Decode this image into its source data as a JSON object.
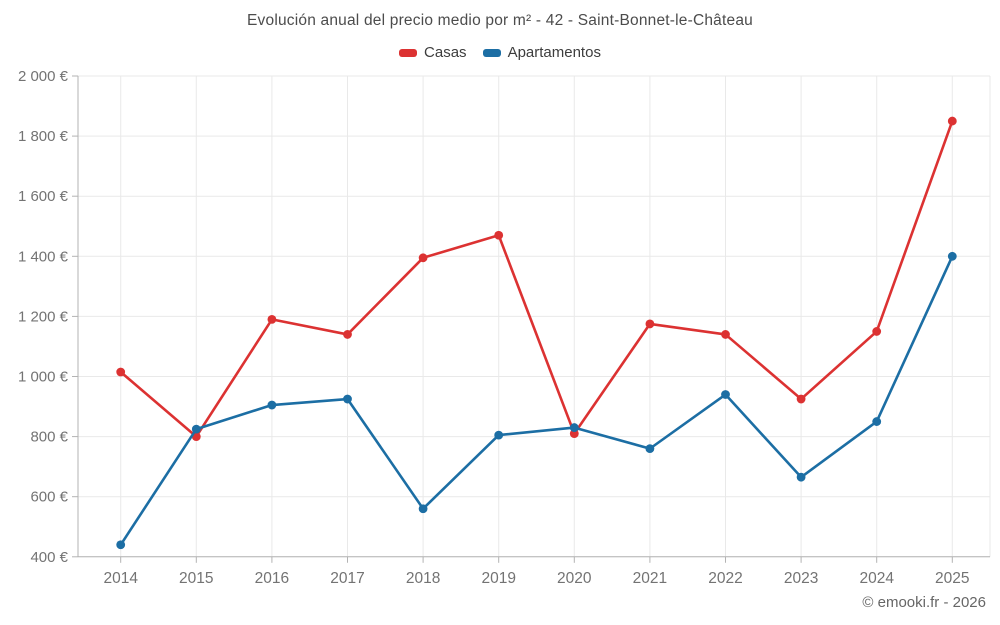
{
  "title": "Evolución anual del precio medio por m² - 42 - Saint-Bonnet-le-Château",
  "legend": [
    {
      "label": "Casas",
      "color": "#dc3232"
    },
    {
      "label": "Apartamentos",
      "color": "#1c6ea4"
    }
  ],
  "footer": "© emooki.fr - 2026",
  "styles": {
    "background": "#ffffff",
    "grid": "#e9e9e9",
    "axis": "#b3b3b3",
    "tick_text": "#737373",
    "title_text": "#4c4c4c",
    "legend_text": "#3d3d3d",
    "footer_text": "#666666"
  },
  "chart_data": {
    "type": "line",
    "title": "Evolución anual del precio medio por m² - 42 - Saint-Bonnet-le-Château",
    "xlabel": "",
    "ylabel": "",
    "x": [
      2014,
      2015,
      2016,
      2017,
      2018,
      2019,
      2020,
      2021,
      2022,
      2023,
      2024,
      2025
    ],
    "series": [
      {
        "name": "Casas",
        "color": "#dc3232",
        "values": [
          1015,
          800,
          1190,
          1140,
          1395,
          1470,
          810,
          1175,
          1140,
          925,
          1150,
          1850
        ]
      },
      {
        "name": "Apartamentos",
        "color": "#1c6ea4",
        "values": [
          440,
          825,
          905,
          925,
          560,
          805,
          830,
          760,
          940,
          665,
          850,
          1400
        ]
      }
    ],
    "ylim": [
      400,
      2000
    ],
    "y_ticks": [
      400,
      600,
      800,
      1000,
      1200,
      1400,
      1600,
      1800,
      2000
    ],
    "y_tick_labels": [
      "400 €",
      "600 €",
      "800 €",
      "1 000 €",
      "1 200 €",
      "1 400 €",
      "1 600 €",
      "1 800 €",
      "2 000 €"
    ],
    "x_tick_labels": [
      "2014",
      "2015",
      "2016",
      "2017",
      "2018",
      "2019",
      "2020",
      "2021",
      "2022",
      "2023",
      "2024",
      "2025"
    ],
    "grid": true,
    "legend_position": "top",
    "currency": "€"
  }
}
